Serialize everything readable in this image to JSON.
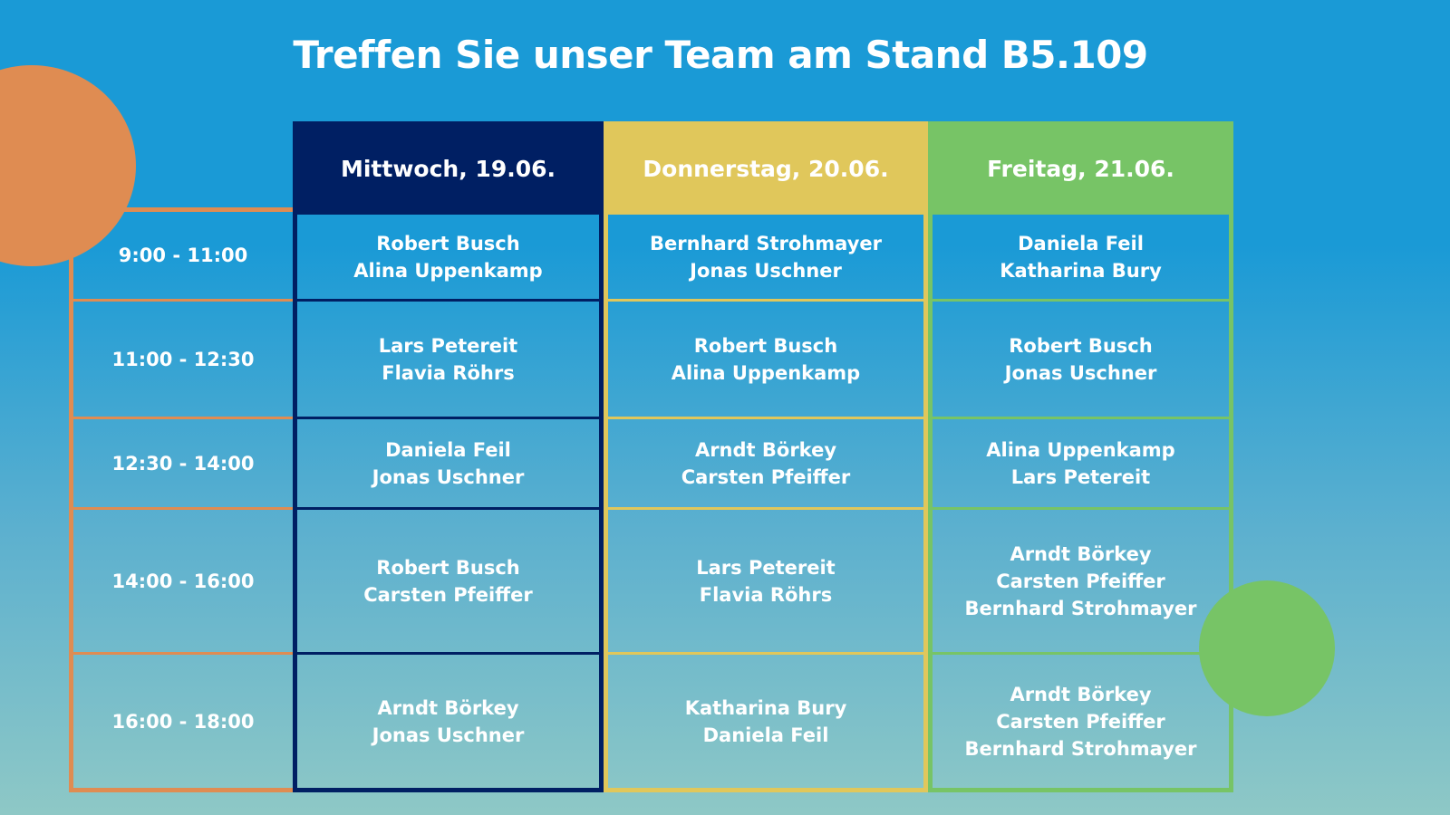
{
  "title": "Treffen Sie unser Team am Stand B5.109",
  "colors": {
    "orange": "#df8c52",
    "navy": "#001f63",
    "yellow": "#e0c75b",
    "green": "#77c466",
    "background_top": "#1a9ad6",
    "background_bottom": "#8ec8c6"
  },
  "schedule": {
    "times": [
      "9:00 - 11:00",
      "11:00 - 12:30",
      "12:30 - 14:00",
      "14:00 - 16:00",
      "16:00 - 18:00"
    ],
    "days": [
      {
        "label": "Mittwoch, 19.06.",
        "slots": [
          [
            "Robert Busch",
            "Alina Uppenkamp"
          ],
          [
            "Lars Petereit",
            "Flavia Röhrs"
          ],
          [
            "Daniela Feil",
            "Jonas Uschner"
          ],
          [
            "Robert Busch",
            "Carsten Pfeiffer"
          ],
          [
            "Arndt Börkey",
            "Jonas Uschner"
          ]
        ]
      },
      {
        "label": "Donnerstag, 20.06.",
        "slots": [
          [
            "Bernhard Strohmayer",
            "Jonas Uschner"
          ],
          [
            "Robert Busch",
            "Alina Uppenkamp"
          ],
          [
            "Arndt Börkey",
            "Carsten Pfeiffer"
          ],
          [
            "Lars Petereit",
            "Flavia Röhrs"
          ],
          [
            "Katharina Bury",
            "Daniela Feil"
          ]
        ]
      },
      {
        "label": "Freitag, 21.06.",
        "slots": [
          [
            "Daniela Feil",
            "Katharina Bury"
          ],
          [
            "Robert Busch",
            "Jonas Uschner"
          ],
          [
            "Alina Uppenkamp",
            "Lars Petereit"
          ],
          [
            "Arndt Börkey",
            "Carsten Pfeiffer",
            "Bernhard Strohmayer"
          ],
          [
            "Arndt Börkey",
            "Carsten Pfeiffer",
            "Bernhard Strohmayer"
          ]
        ]
      }
    ]
  }
}
